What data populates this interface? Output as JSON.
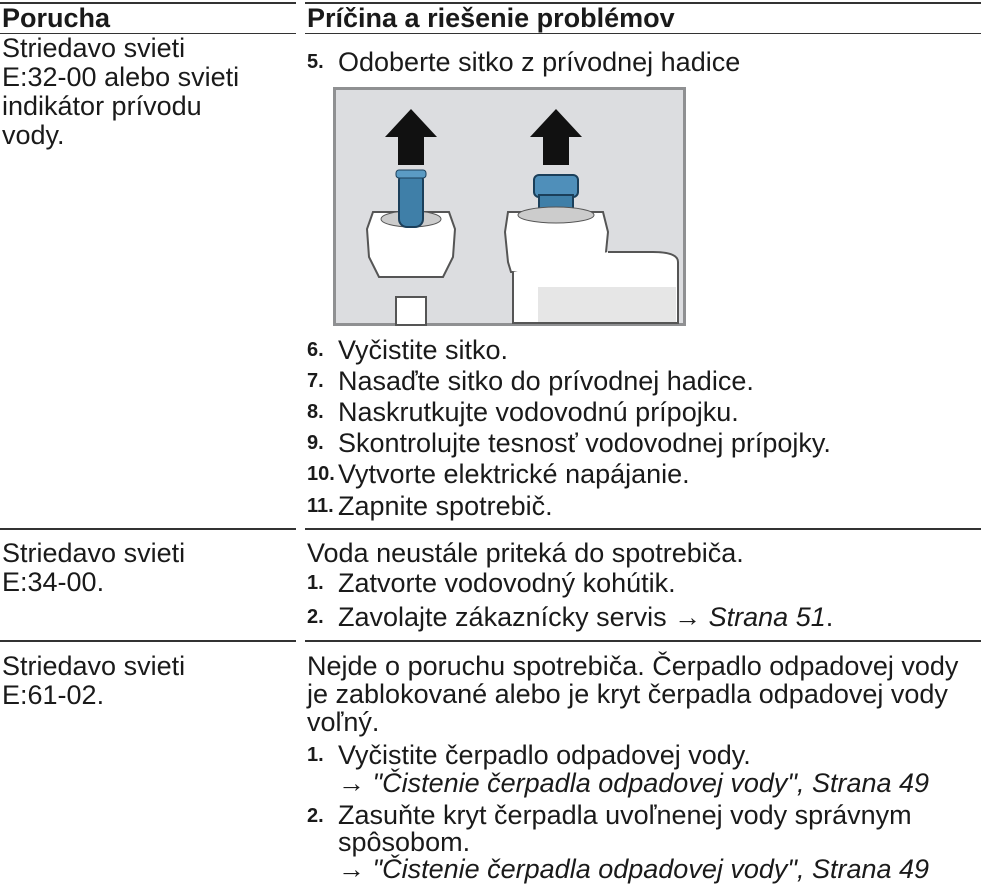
{
  "header": {
    "fault": "Porucha",
    "solution": "Príčina a riešenie problémov"
  },
  "rows": [
    {
      "fault": "Striedavo svieti E:32-00 alebo svieti indikátor prívodu vody.",
      "steps": [
        {
          "number": "5.",
          "text": "Odoberte sitko z prívodnej hadice"
        },
        {
          "number": "6.",
          "text": "Vyčistite sitko."
        },
        {
          "number": "7.",
          "text": "Nasaďte sitko do prívodnej hadice."
        },
        {
          "number": "8.",
          "text": "Naskrutkujte vodovodnú prípojku."
        },
        {
          "number": "9.",
          "text": "Skontrolujte tesnosť vodovodnej prípojky."
        },
        {
          "number": "10.",
          "text": "Vytvorte elektrické napájanie."
        },
        {
          "number": "11.",
          "text": "Zapnite spotrebič."
        }
      ]
    },
    {
      "fault": "Striedavo svieti E:34-00.",
      "intro": "Voda neustále priteká do spotrebiča.",
      "steps": [
        {
          "number": "1.",
          "text": "Zatvorte vodovodný kohútik."
        },
        {
          "number": "2.",
          "text": "Zavolajte zákaznícky servis →",
          "link": "Strana 51",
          "after": "."
        }
      ]
    },
    {
      "fault": "Striedavo svieti E:61-02.",
      "intro": "Nejde o poruchu spotrebiča. Čerpadlo odpadovej vody je zablokované alebo je kryt čerpadla odpadovej vody voľný.",
      "steps": [
        {
          "number": "1.",
          "text": "Vyčistite čerpadlo odpadovej vody.",
          "reference": {
            "arrow": "→",
            "link": "\"Čistenie čerpadla odpadovej vody\", Strana 49"
          }
        },
        {
          "number": "2.",
          "text": "Zasuňte kryt čerpadla uvoľnenej vody správnym spôsobom.",
          "reference": {
            "arrow": "→",
            "link": "\"Čistenie čerpadla odpadovej vody\", Strana 49"
          }
        }
      ]
    }
  ]
}
